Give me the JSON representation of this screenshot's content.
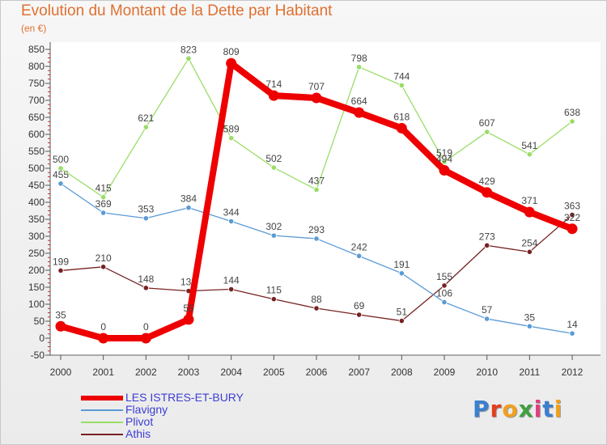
{
  "header": {
    "title": "Evolution du Montant de la Dette par Habitant",
    "subtitle": "(en €)"
  },
  "logo": {
    "text": "Proxiti",
    "colors": [
      "#3a7fd0",
      "#e04020",
      "#f0a020",
      "#40a040",
      "#e04080",
      "#3a7fd0",
      "#f0a020"
    ]
  },
  "chart_data": {
    "type": "line",
    "title": "Evolution du Montant de la Dette par Habitant",
    "subtitle": "(en €)",
    "x": [
      "2000",
      "2001",
      "2002",
      "2003",
      "2004",
      "2005",
      "2006",
      "2007",
      "2008",
      "2009",
      "2010",
      "2011",
      "2012"
    ],
    "ylim": [
      -50,
      850
    ],
    "yticks": [
      -50,
      0,
      50,
      100,
      150,
      200,
      250,
      300,
      350,
      400,
      450,
      500,
      550,
      600,
      650,
      700,
      750,
      800,
      850
    ],
    "grid": false,
    "legend_position": "bottom-left",
    "series": [
      {
        "name": "LES ISTRES-ET-BURY",
        "color": "#ee0000",
        "values": [
          35,
          0,
          0,
          55,
          809,
          714,
          707,
          664,
          618,
          494,
          429,
          371,
          322
        ],
        "labels": [
          "35",
          "0",
          "0",
          "55",
          "809",
          "714",
          "707",
          "664",
          "618",
          "494",
          "429",
          "371",
          "322"
        ]
      },
      {
        "name": "Flavigny",
        "color": "#5b9bd5",
        "values": [
          455,
          369,
          353,
          384,
          344,
          302,
          293,
          242,
          191,
          106,
          57,
          35,
          14
        ],
        "labels": [
          "455",
          "369",
          "353",
          "384",
          "344",
          "302",
          "293",
          "242",
          "191",
          "106",
          "57",
          "35",
          "14"
        ]
      },
      {
        "name": "Plivot",
        "color": "#99dd66",
        "values": [
          500,
          415,
          621,
          823,
          589,
          502,
          437,
          798,
          744,
          519,
          607,
          541,
          638
        ],
        "labels": [
          "500",
          "415",
          "621",
          "823",
          "589",
          "502",
          "437",
          "798",
          "744",
          "519",
          "607",
          "541",
          "638"
        ]
      },
      {
        "name": "Athis",
        "color": "#772222",
        "values": [
          199,
          210,
          148,
          139,
          144,
          115,
          88,
          69,
          51,
          155,
          273,
          254,
          363
        ],
        "labels": [
          "199",
          "210",
          "148",
          "139",
          "144",
          "115",
          "88",
          "69",
          "51",
          "155",
          "273",
          "254",
          "363"
        ]
      }
    ]
  }
}
